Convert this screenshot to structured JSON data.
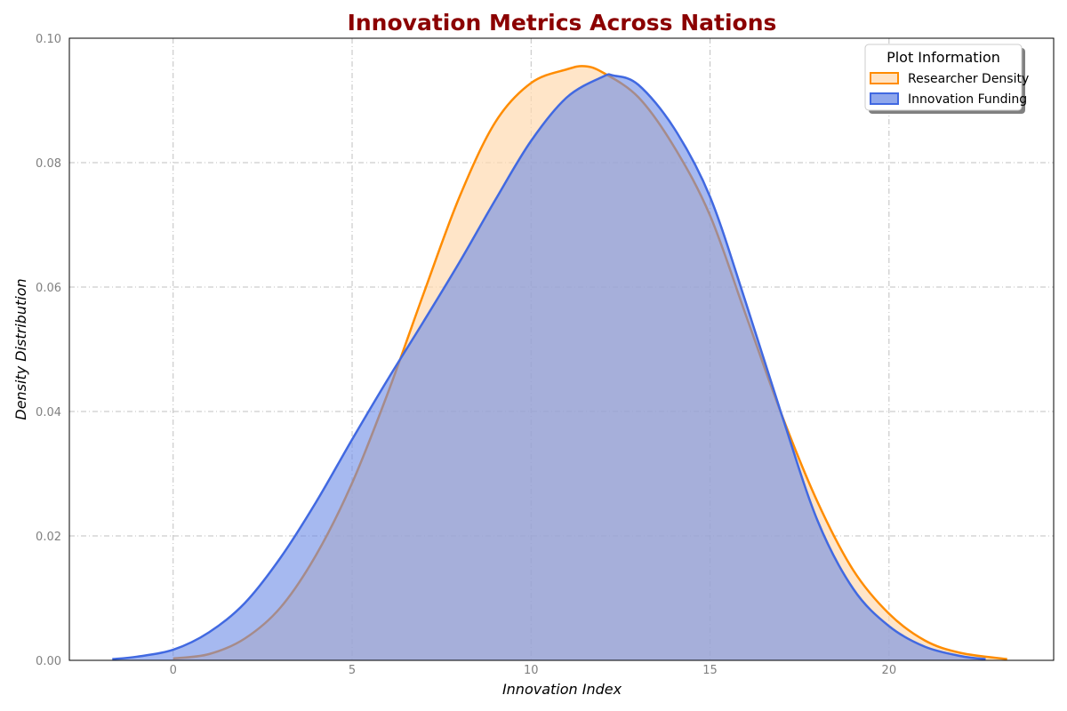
{
  "chart_data": {
    "type": "area",
    "title": "Innovation Metrics Across Nations",
    "title_color": "#8b0000",
    "xlabel": "Innovation Index",
    "ylabel": "Density Distribution",
    "xlim": [
      -2.9,
      24.6
    ],
    "ylim": [
      0.0,
      0.1
    ],
    "xticks": [
      0,
      5,
      10,
      15,
      20
    ],
    "xtick_labels": [
      "0",
      "5",
      "10",
      "15",
      "20"
    ],
    "yticks": [
      0.0,
      0.02,
      0.04,
      0.06,
      0.08,
      0.1
    ],
    "ytick_labels": [
      "0.00",
      "0.02",
      "0.04",
      "0.06",
      "0.08",
      "0.10"
    ],
    "grid": true,
    "legend": {
      "title": "Plot Information",
      "placement": "top-right"
    },
    "series": [
      {
        "name": "Researcher Density",
        "color": "#ff8c00",
        "fill": "#ffdab0",
        "x": [
          0,
          1,
          2,
          3,
          4,
          5,
          6,
          7,
          8,
          9,
          10,
          11,
          11.5,
          12,
          13,
          14,
          15,
          16,
          17,
          18,
          19,
          20,
          21,
          22,
          23.3
        ],
        "y": [
          0.0003,
          0.001,
          0.0035,
          0.0085,
          0.017,
          0.0285,
          0.043,
          0.059,
          0.0745,
          0.0865,
          0.0928,
          0.095,
          0.0955,
          0.0945,
          0.0905,
          0.0825,
          0.0715,
          0.0555,
          0.0395,
          0.0255,
          0.0145,
          0.0075,
          0.0032,
          0.0012,
          0.0002
        ]
      },
      {
        "name": "Innovation Funding",
        "color": "#4169e1",
        "fill": "#6a8ae6",
        "x": [
          -1.7,
          -1,
          0,
          1,
          2,
          3,
          4,
          5,
          6,
          7,
          8,
          9,
          10,
          11,
          12,
          12.3,
          13,
          14,
          15,
          16,
          17,
          18,
          19,
          20,
          21,
          22,
          22.7
        ],
        "y": [
          0.0002,
          0.0006,
          0.0017,
          0.0045,
          0.0092,
          0.0165,
          0.0255,
          0.0355,
          0.0452,
          0.0545,
          0.064,
          0.074,
          0.0835,
          0.0905,
          0.0938,
          0.094,
          0.0925,
          0.0855,
          0.0745,
          0.0575,
          0.0395,
          0.0225,
          0.0115,
          0.0055,
          0.0022,
          0.0007,
          0.0002
        ]
      }
    ]
  }
}
